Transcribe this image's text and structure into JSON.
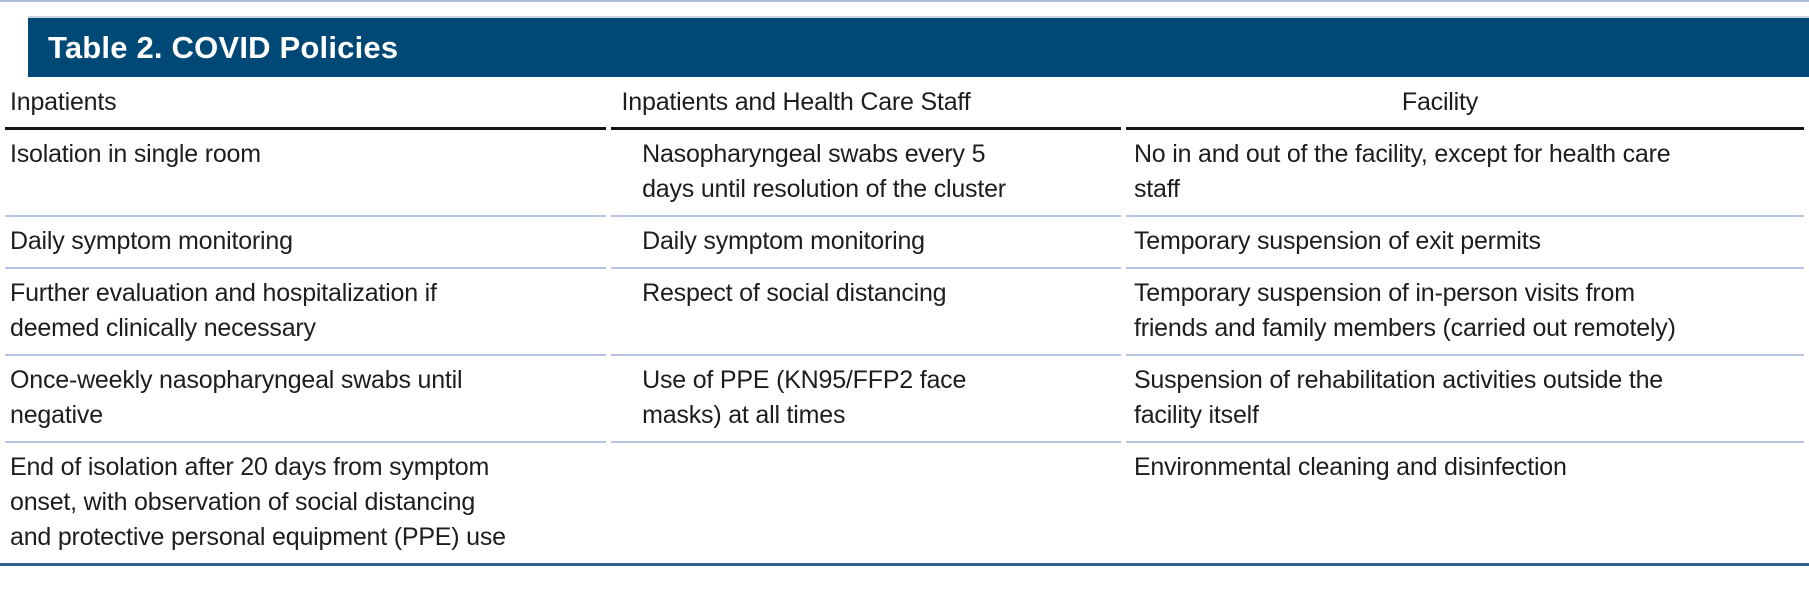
{
  "page": {
    "title": "Table 2. COVID Policies"
  },
  "table": {
    "headers": [
      "Inpatients",
      "Inpatients and Health Care Staff",
      "Facility"
    ],
    "rows": [
      [
        "Isolation in single room",
        "Nasopharyngeal swabs every 5\ndays until resolution of the cluster",
        "No in and out of the facility, except for health care\nstaff"
      ],
      [
        "Daily symptom monitoring",
        "Daily symptom monitoring",
        "Temporary suspension of exit permits"
      ],
      [
        "Further evaluation and hospitalization if\ndeemed clinically necessary",
        "Respect of social distancing",
        "Temporary suspension of in-person visits from\nfriends and family members (carried out remotely)"
      ],
      [
        "Once-weekly nasopharyngeal swabs until\nnegative",
        "Use of PPE (KN95/FFP2 face\nmasks) at all times",
        "Suspension of rehabilitation activities outside the\nfacility itself"
      ],
      [
        "End of isolation after 20 days from symptom\nonset, with observation of social distancing\nand protective personal equipment (PPE) use",
        "",
        "Environmental cleaning and disinfection"
      ]
    ]
  },
  "colors": {
    "title_bar_bg": "#004875",
    "title_text": "#ffffff",
    "body_text": "#1d1d1d",
    "header_underline": "#151515",
    "row_separator": "#b5c4e2",
    "bottom_rule": "#2f608c",
    "top_rule": "#aebfd9"
  }
}
